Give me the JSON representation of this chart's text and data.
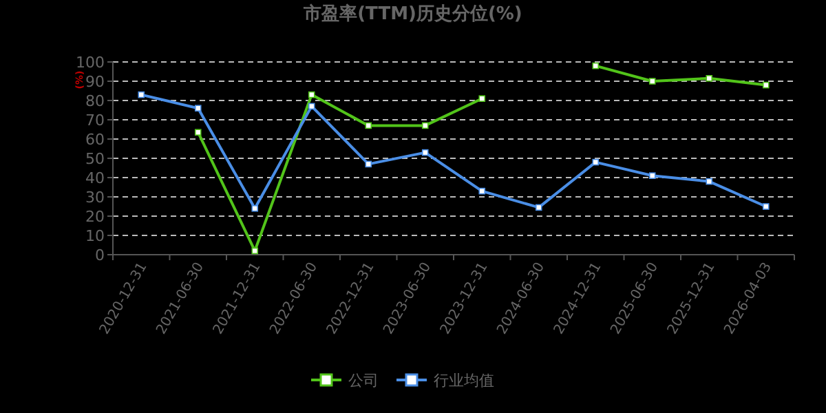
{
  "chart_data": {
    "type": "line",
    "title": "市盈率(TTM)历史分位(%)",
    "ylabel": "(%)",
    "categories": [
      "2020-12-31",
      "2021-06-30",
      "2021-12-31",
      "2022-06-30",
      "2022-12-31",
      "2023-06-30",
      "2023-12-31",
      "2024-06-30",
      "2024-12-31",
      "2025-06-30",
      "2025-12-31",
      "2026-04-03"
    ],
    "series": [
      {
        "name": "公司",
        "color": "#52c41a",
        "values": [
          null,
          63.5,
          2,
          83,
          67,
          67,
          81,
          null,
          98,
          90,
          91.5,
          88
        ]
      },
      {
        "name": "行业均值",
        "color": "#4a8ee6",
        "values": [
          83,
          76,
          24,
          77,
          47,
          53,
          33,
          24.5,
          48,
          41,
          38,
          25
        ]
      }
    ],
    "ylim": [
      0,
      100
    ],
    "yticks": [
      0,
      10,
      20,
      30,
      40,
      50,
      60,
      70,
      80,
      90,
      100
    ],
    "grid": "y",
    "legend": "bottom",
    "marker": "square",
    "line_style": "solid"
  }
}
